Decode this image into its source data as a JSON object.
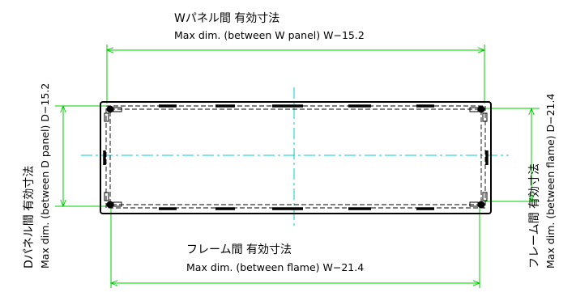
{
  "labels": {
    "w_panel_jp": "Wパネル間 有効寸法",
    "w_panel_en": "Max dim. (between W panel) W−15.2",
    "d_panel_jp": "Dパネル間 有効寸法",
    "d_panel_en": "Max dim. (between D panel) D−15.2",
    "frame_w_jp": "フレーム間 有効寸法",
    "frame_w_en": "Max dim. (between flame) W−21.4",
    "frame_d_jp": "フレーム間 有効寸法",
    "frame_d_en": "Max dim. (between flame) D−21.4"
  },
  "colors": {
    "outline": "#000000",
    "dimension": "#00cc00",
    "centerline": "#00cccc"
  }
}
